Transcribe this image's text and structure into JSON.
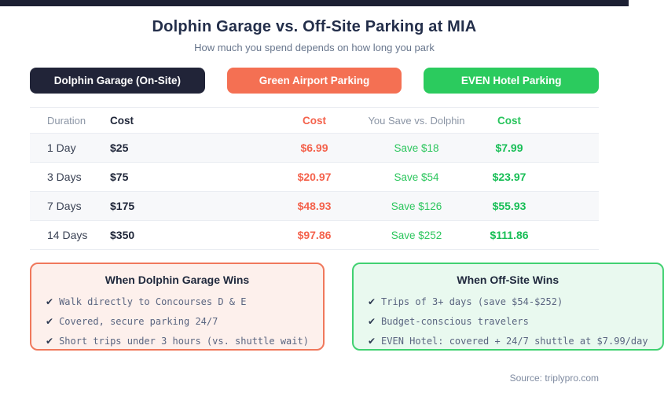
{
  "header": {
    "title": "Dolphin Garage vs. Off-Site Parking at MIA",
    "subtitle": "How much you spend depends on how long you park"
  },
  "badges": [
    {
      "label": "Dolphin Garage (On-Site)"
    },
    {
      "label": "Green Airport Parking"
    },
    {
      "label": "EVEN Hotel Parking"
    }
  ],
  "table": {
    "headers": {
      "duration": "Duration",
      "dolphin_cost": "Cost",
      "green_airport_cost": "Cost",
      "save": "You Save vs. Dolphin",
      "even_hotel_cost": "Cost"
    },
    "rows": [
      {
        "duration": "1 Day",
        "dolphin_cost": "$25",
        "green_airport_cost": "$6.99",
        "save": "Save $18",
        "even_hotel_cost": "$7.99"
      },
      {
        "duration": "3 Days",
        "dolphin_cost": "$75",
        "green_airport_cost": "$20.97",
        "save": "Save $54",
        "even_hotel_cost": "$23.97"
      },
      {
        "duration": "7 Days",
        "dolphin_cost": "$175",
        "green_airport_cost": "$48.93",
        "save": "Save $126",
        "even_hotel_cost": "$55.93"
      },
      {
        "duration": "14 Days",
        "dolphin_cost": "$350",
        "green_airport_cost": "$97.86",
        "save": "Save $252",
        "even_hotel_cost": "$111.86"
      }
    ]
  },
  "boxes": [
    {
      "title": "When Dolphin Garage Wins",
      "items": [
        "Walk directly to Concourses D & E",
        "Covered, secure parking 24/7",
        "Short trips under 3 hours (vs. shuttle wait)"
      ]
    },
    {
      "title": "When Off-Site Wins",
      "items": [
        "Trips of 3+ days (save $54-$252)",
        "Budget-conscious travelers",
        "EVEN Hotel: covered + 24/7 shuttle at $7.99/day"
      ]
    }
  ],
  "footer": {
    "source": "Source: triplypro.com"
  },
  "icons": {
    "check": "✔"
  },
  "colors": {
    "topbar": "#1c2033",
    "title_text": "#232e4a",
    "dolphin_badge": "#212438",
    "green_airport_badge": "#f47053",
    "even_hotel_badge": "#2bcb5e",
    "orange_text": "#f4624c",
    "green_text": "#27c45c",
    "row_stripe": "#f7f8fa",
    "dolphin_box_bg": "#fdf0ec",
    "dolphin_box_border": "#f0785c",
    "offsite_box_bg": "#e9f9ef",
    "offsite_box_border": "#41d171"
  },
  "chart_data": {
    "type": "table",
    "title": "Dolphin Garage vs. Off-Site Parking at MIA",
    "subtitle": "How much you spend depends on how long you park",
    "columns": [
      "Duration",
      "Dolphin Garage (On-Site) Cost",
      "Green Airport Parking Cost",
      "You Save vs. Dolphin",
      "EVEN Hotel Parking Cost"
    ],
    "rows": [
      [
        "1 Day",
        25,
        6.99,
        18,
        7.99
      ],
      [
        "3 Days",
        75,
        20.97,
        54,
        23.97
      ],
      [
        "7 Days",
        175,
        48.93,
        126,
        55.93
      ],
      [
        "14 Days",
        350,
        97.86,
        252,
        111.86
      ]
    ],
    "source": "triplypro.com"
  }
}
